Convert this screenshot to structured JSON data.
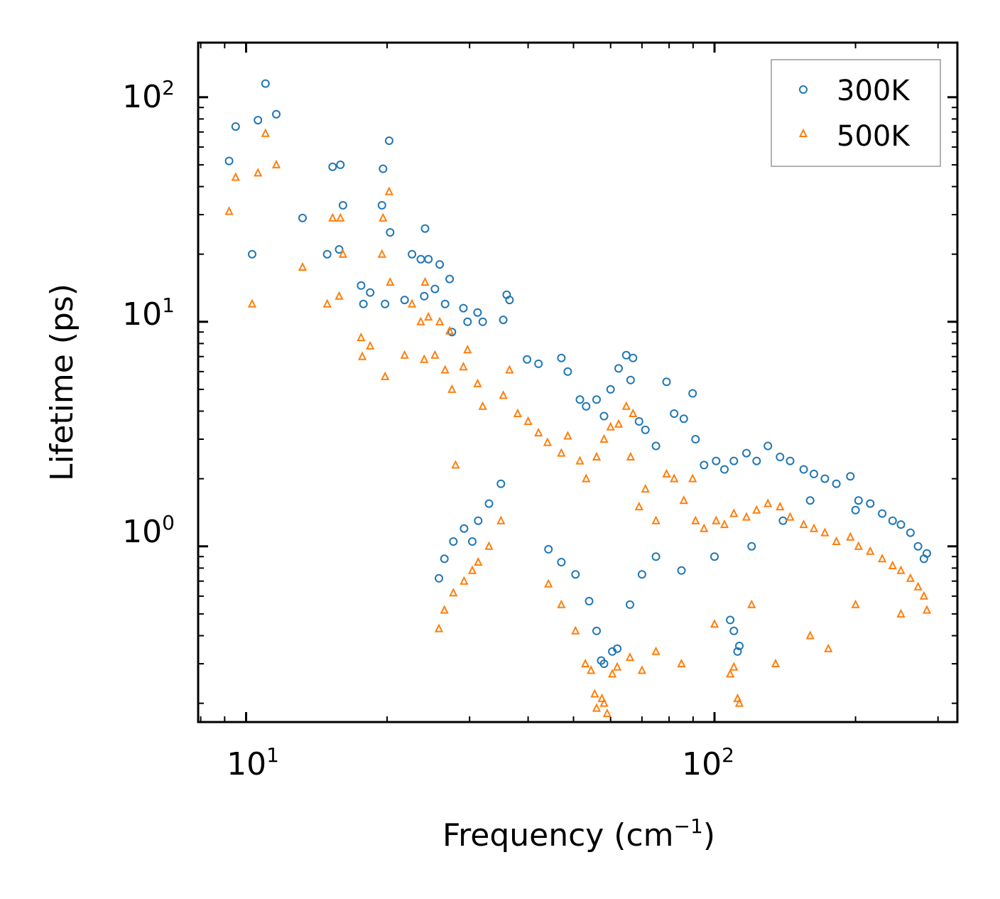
{
  "chart_data": {
    "type": "scatter",
    "xscale": "log",
    "yscale": "log",
    "xlabel": "Frequency (cm",
    "xlabel_exp": "−1",
    "xlabel_close": ")",
    "ylabel": "Lifetime (ps)",
    "xlim": [
      7.9,
      330
    ],
    "ylim": [
      0.165,
      175
    ],
    "legend_position": "top-right",
    "xticks": [
      {
        "value": 10,
        "base": "10",
        "exp": "1"
      },
      {
        "value": 100,
        "base": "10",
        "exp": "2"
      }
    ],
    "yticks": [
      {
        "value": 1,
        "base": "10",
        "exp": "0"
      },
      {
        "value": 10,
        "base": "10",
        "exp": "1"
      },
      {
        "value": 100,
        "base": "10",
        "exp": "2"
      }
    ],
    "series": [
      {
        "name": "300K",
        "marker": "circle",
        "color": "#1f77b4",
        "points": [
          [
            9.2,
            52
          ],
          [
            9.5,
            74
          ],
          [
            10.3,
            20
          ],
          [
            10.6,
            79
          ],
          [
            11.0,
            115
          ],
          [
            11.6,
            84
          ],
          [
            13.2,
            29
          ],
          [
            14.9,
            20
          ],
          [
            15.3,
            49
          ],
          [
            15.8,
            21
          ],
          [
            15.9,
            50
          ],
          [
            16.1,
            33
          ],
          [
            17.6,
            14.5
          ],
          [
            17.8,
            12
          ],
          [
            18.4,
            13.5
          ],
          [
            19.5,
            33
          ],
          [
            19.6,
            48
          ],
          [
            20.2,
            64
          ],
          [
            20.3,
            25
          ],
          [
            19.8,
            12
          ],
          [
            21.8,
            12.5
          ],
          [
            22.6,
            20
          ],
          [
            23.6,
            19
          ],
          [
            24.1,
            26
          ],
          [
            24.5,
            19
          ],
          [
            24.0,
            13
          ],
          [
            25.9,
            18
          ],
          [
            25.3,
            14
          ],
          [
            27.2,
            15.5
          ],
          [
            26.6,
            12
          ],
          [
            29.1,
            11.5
          ],
          [
            27.5,
            9
          ],
          [
            29.7,
            10
          ],
          [
            31.2,
            11
          ],
          [
            32.0,
            10
          ],
          [
            35.4,
            10.2
          ],
          [
            36.0,
            13.2
          ],
          [
            36.5,
            12.5
          ],
          [
            39.8,
            6.8
          ],
          [
            42.1,
            6.5
          ],
          [
            47.1,
            6.9
          ],
          [
            48.6,
            6.0
          ],
          [
            51.6,
            4.5
          ],
          [
            53.2,
            4.2
          ],
          [
            56.0,
            4.5
          ],
          [
            58.1,
            3.8
          ],
          [
            60.0,
            5.0
          ],
          [
            62.4,
            6.2
          ],
          [
            64.8,
            7.1
          ],
          [
            67.0,
            6.9
          ],
          [
            66.2,
            5.5
          ],
          [
            69.0,
            3.6
          ],
          [
            71.2,
            3.3
          ],
          [
            75.0,
            2.8
          ],
          [
            79.0,
            5.4
          ],
          [
            82.0,
            3.9
          ],
          [
            86.0,
            3.7
          ],
          [
            89.8,
            4.8
          ],
          [
            91.1,
            3.0
          ],
          [
            95.0,
            2.3
          ],
          [
            100.8,
            2.4
          ],
          [
            105.0,
            2.2
          ],
          [
            110.0,
            2.4
          ],
          [
            117.0,
            2.6
          ],
          [
            123.0,
            2.4
          ],
          [
            130.0,
            2.8
          ],
          [
            138.0,
            2.5
          ],
          [
            145.0,
            2.4
          ],
          [
            155.0,
            2.2
          ],
          [
            163.0,
            2.1
          ],
          [
            172.0,
            2.0
          ],
          [
            182.0,
            1.9
          ],
          [
            195.0,
            2.05
          ],
          [
            203.0,
            1.6
          ],
          [
            215.0,
            1.55
          ],
          [
            228.0,
            1.4
          ],
          [
            240.0,
            1.3
          ],
          [
            250.0,
            1.25
          ],
          [
            262.0,
            1.15
          ],
          [
            272.0,
            1.0
          ],
          [
            280.0,
            0.88
          ],
          [
            284.0,
            0.93
          ],
          [
            25.8,
            0.72
          ],
          [
            26.5,
            0.88
          ],
          [
            27.7,
            1.05
          ],
          [
            29.2,
            1.2
          ],
          [
            30.4,
            1.05
          ],
          [
            31.3,
            1.3
          ],
          [
            33.0,
            1.55
          ],
          [
            35.0,
            1.9
          ],
          [
            44.2,
            0.97
          ],
          [
            47.1,
            0.85
          ],
          [
            50.5,
            0.75
          ],
          [
            54.0,
            0.57
          ],
          [
            56.0,
            0.42
          ],
          [
            57.3,
            0.31
          ],
          [
            58.1,
            0.3
          ],
          [
            60.5,
            0.34
          ],
          [
            62.0,
            0.35
          ],
          [
            66.0,
            0.55
          ],
          [
            70.0,
            0.75
          ],
          [
            75.0,
            0.9
          ],
          [
            85.0,
            0.78
          ],
          [
            108.0,
            0.47
          ],
          [
            110.0,
            0.42
          ],
          [
            112.0,
            0.34
          ],
          [
            113.0,
            0.36
          ],
          [
            100.0,
            0.9
          ],
          [
            120.0,
            1.0
          ],
          [
            140.0,
            1.3
          ],
          [
            160.0,
            1.6
          ],
          [
            200.0,
            1.45
          ]
        ]
      },
      {
        "name": "500K",
        "marker": "triangle",
        "color": "#ff7f0e",
        "points": [
          [
            9.2,
            31
          ],
          [
            9.5,
            44
          ],
          [
            10.3,
            12
          ],
          [
            10.6,
            46
          ],
          [
            11.0,
            69
          ],
          [
            11.6,
            50
          ],
          [
            13.2,
            17.5
          ],
          [
            14.9,
            12
          ],
          [
            15.3,
            29
          ],
          [
            15.9,
            29
          ],
          [
            16.1,
            20
          ],
          [
            15.8,
            13
          ],
          [
            17.6,
            8.5
          ],
          [
            17.7,
            7.0
          ],
          [
            18.4,
            7.8
          ],
          [
            19.5,
            20
          ],
          [
            19.6,
            29
          ],
          [
            20.2,
            38
          ],
          [
            20.3,
            15
          ],
          [
            19.8,
            5.7
          ],
          [
            21.8,
            7.1
          ],
          [
            22.6,
            12
          ],
          [
            23.6,
            10
          ],
          [
            24.1,
            15
          ],
          [
            24.5,
            10.5
          ],
          [
            24.0,
            6.8
          ],
          [
            25.9,
            10
          ],
          [
            25.3,
            7.1
          ],
          [
            27.2,
            9.1
          ],
          [
            26.6,
            6.1
          ],
          [
            29.1,
            6.3
          ],
          [
            27.5,
            5.0
          ],
          [
            28.0,
            2.3
          ],
          [
            29.7,
            7.5
          ],
          [
            31.2,
            5.3
          ],
          [
            32.0,
            4.2
          ],
          [
            35.4,
            4.7
          ],
          [
            36.5,
            6.1
          ],
          [
            38.0,
            3.9
          ],
          [
            40.0,
            3.6
          ],
          [
            42.1,
            3.2
          ],
          [
            44.0,
            2.9
          ],
          [
            47.1,
            2.6
          ],
          [
            48.6,
            3.1
          ],
          [
            51.6,
            2.4
          ],
          [
            53.2,
            2.0
          ],
          [
            56.0,
            2.5
          ],
          [
            58.1,
            3.0
          ],
          [
            60.0,
            3.4
          ],
          [
            62.4,
            3.5
          ],
          [
            64.8,
            4.2
          ],
          [
            67.0,
            3.9
          ],
          [
            66.2,
            2.5
          ],
          [
            69.0,
            1.5
          ],
          [
            71.2,
            1.8
          ],
          [
            75.0,
            1.3
          ],
          [
            79.0,
            2.1
          ],
          [
            82.0,
            2.0
          ],
          [
            86.0,
            1.6
          ],
          [
            89.8,
            2.0
          ],
          [
            91.1,
            1.3
          ],
          [
            95.0,
            1.2
          ],
          [
            100.8,
            1.3
          ],
          [
            105.0,
            1.25
          ],
          [
            110.0,
            1.4
          ],
          [
            117.0,
            1.35
          ],
          [
            123.0,
            1.45
          ],
          [
            130.0,
            1.55
          ],
          [
            138.0,
            1.5
          ],
          [
            145.0,
            1.35
          ],
          [
            155.0,
            1.25
          ],
          [
            163.0,
            1.2
          ],
          [
            172.0,
            1.15
          ],
          [
            182.0,
            1.05
          ],
          [
            195.0,
            1.1
          ],
          [
            203.0,
            1.0
          ],
          [
            215.0,
            0.95
          ],
          [
            228.0,
            0.88
          ],
          [
            240.0,
            0.82
          ],
          [
            250.0,
            0.78
          ],
          [
            262.0,
            0.72
          ],
          [
            272.0,
            0.66
          ],
          [
            280.0,
            0.6
          ],
          [
            284.0,
            0.52
          ],
          [
            25.8,
            0.43
          ],
          [
            26.5,
            0.52
          ],
          [
            27.7,
            0.62
          ],
          [
            29.2,
            0.7
          ],
          [
            30.4,
            0.78
          ],
          [
            31.3,
            0.85
          ],
          [
            33.0,
            1.0
          ],
          [
            35.0,
            1.3
          ],
          [
            44.2,
            0.68
          ],
          [
            47.1,
            0.55
          ],
          [
            50.5,
            0.42
          ],
          [
            53.0,
            0.3
          ],
          [
            54.5,
            0.28
          ],
          [
            55.5,
            0.22
          ],
          [
            56.0,
            0.19
          ],
          [
            57.5,
            0.21
          ],
          [
            58.1,
            0.2
          ],
          [
            59.0,
            0.18
          ],
          [
            60.5,
            0.27
          ],
          [
            62.0,
            0.29
          ],
          [
            66.0,
            0.32
          ],
          [
            70.0,
            0.28
          ],
          [
            75.0,
            0.34
          ],
          [
            85.0,
            0.3
          ],
          [
            100.0,
            0.45
          ],
          [
            108.0,
            0.27
          ],
          [
            110.0,
            0.29
          ],
          [
            112.0,
            0.21
          ],
          [
            113.0,
            0.2
          ],
          [
            120.0,
            0.55
          ],
          [
            135.0,
            0.3
          ],
          [
            160.0,
            0.4
          ],
          [
            175.0,
            0.35
          ],
          [
            200.0,
            0.55
          ],
          [
            250.0,
            0.5
          ]
        ]
      }
    ]
  }
}
